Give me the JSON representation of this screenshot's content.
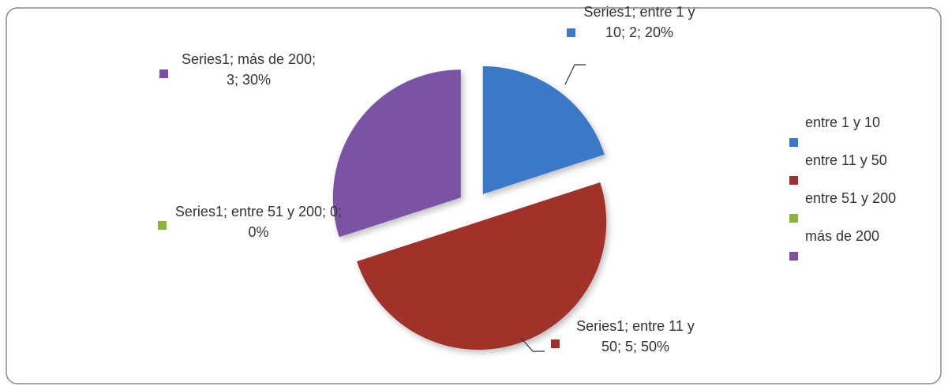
{
  "chart_data": {
    "type": "pie",
    "series_name": "Series1",
    "categories": [
      "entre 1 y 10",
      "entre 11 y 50",
      "entre 51 y 200",
      "más de 200"
    ],
    "values": [
      2,
      5,
      0,
      3
    ],
    "value_labels": [
      "Series1; entre 1 y 10; 2; 20%",
      "Series1; entre 11 y 50; 5; 50%",
      "Series1; entre 51 y 200; 0; 0%",
      "Series1; más de 200; 3; 30%"
    ],
    "colors": [
      "#3a78c8",
      "#a0302b",
      "#8ab43c",
      "#7a52a4"
    ],
    "legend": "right"
  }
}
